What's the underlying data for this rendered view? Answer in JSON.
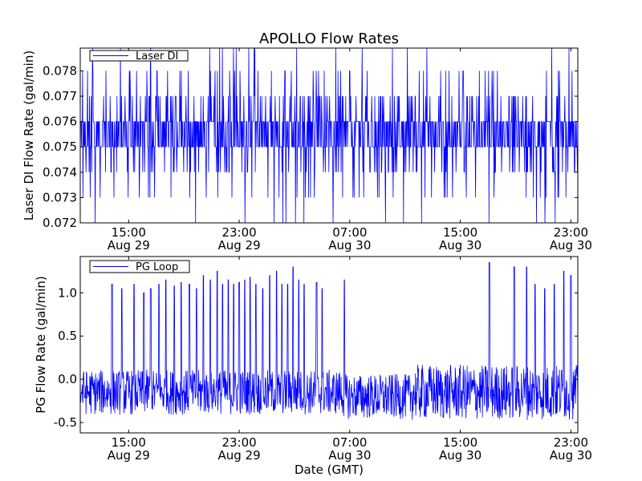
{
  "chart_data": [
    {
      "type": "line",
      "title": "APOLLO Flow Rates",
      "ylabel": "Laser DI Flow Rate (gal/min)",
      "xlabel": "",
      "ylim": [
        0.072,
        0.0789
      ],
      "yticks": [
        0.072,
        0.073,
        0.074,
        0.075,
        0.076,
        0.077,
        0.078
      ],
      "ytick_labels": [
        "0.072",
        "0.073",
        "0.074",
        "0.075",
        "0.076",
        "0.077",
        "0.078"
      ],
      "xlim_hours": [
        0,
        36
      ],
      "xticks_hours": [
        3.5,
        11.5,
        19.5,
        27.5,
        35.5
      ],
      "xtick_labels": [
        [
          "15:00",
          "Aug 29"
        ],
        [
          "23:00",
          "Aug 29"
        ],
        [
          "07:00",
          "Aug 30"
        ],
        [
          "15:00",
          "Aug 30"
        ],
        [
          "23:00",
          "Aug 30"
        ]
      ],
      "legend": {
        "label": "Laser DI",
        "loc": "upper-left"
      },
      "series": [
        {
          "name": "Laser DI",
          "color": "#0000ff",
          "description": "quantized flow readings alternating mostly between 0.075 and 0.076 gal/min with frequent excursions to 0.073-0.078 and rare spikes beyond",
          "typical_range": [
            0.075,
            0.076
          ],
          "excursion_range": [
            0.073,
            0.078
          ]
        }
      ]
    },
    {
      "type": "line",
      "title": "",
      "ylabel": "PG Flow Rate (gal/min)",
      "xlabel": "Date (GMT)",
      "ylim": [
        -0.62,
        1.42
      ],
      "yticks": [
        -0.5,
        0.0,
        0.5,
        1.0
      ],
      "ytick_labels": [
        "-0.5",
        "0.0",
        "0.5",
        "1.0"
      ],
      "xlim_hours": [
        0,
        36
      ],
      "xticks_hours": [
        3.5,
        11.5,
        19.5,
        27.5,
        35.5
      ],
      "xtick_labels": [
        [
          "15:00",
          "Aug 29"
        ],
        [
          "23:00",
          "Aug 29"
        ],
        [
          "07:00",
          "Aug 30"
        ],
        [
          "15:00",
          "Aug 30"
        ],
        [
          "23:00",
          "Aug 30"
        ]
      ],
      "legend": {
        "label": "PG Loop",
        "loc": "upper-left"
      },
      "series": [
        {
          "name": "PG Loop",
          "color": "#0000ff",
          "description": "noisy baseline oscillating between about -0.45 and 0.15 gal/min with periodic spikes reaching about 1.0-1.35 gal/min",
          "baseline_range": [
            -0.45,
            0.15
          ],
          "spikes": [
            {
              "t": 2.3,
              "peak": 1.1
            },
            {
              "t": 3.0,
              "peak": 1.05
            },
            {
              "t": 3.9,
              "peak": 1.1
            },
            {
              "t": 4.6,
              "peak": 1.0
            },
            {
              "t": 5.1,
              "peak": 1.05
            },
            {
              "t": 5.7,
              "peak": 1.1
            },
            {
              "t": 6.2,
              "peak": 1.15
            },
            {
              "t": 6.8,
              "peak": 1.08
            },
            {
              "t": 7.3,
              "peak": 1.12
            },
            {
              "t": 7.9,
              "peak": 1.1
            },
            {
              "t": 8.4,
              "peak": 1.05
            },
            {
              "t": 8.9,
              "peak": 1.2
            },
            {
              "t": 9.4,
              "peak": 1.15
            },
            {
              "t": 9.9,
              "peak": 1.25
            },
            {
              "t": 10.3,
              "peak": 1.1
            },
            {
              "t": 10.7,
              "peak": 1.15
            },
            {
              "t": 11.1,
              "peak": 1.1
            },
            {
              "t": 11.5,
              "peak": 1.12
            },
            {
              "t": 11.9,
              "peak": 1.15
            },
            {
              "t": 12.3,
              "peak": 1.18
            },
            {
              "t": 12.7,
              "peak": 1.1
            },
            {
              "t": 13.2,
              "peak": 1.05
            },
            {
              "t": 13.7,
              "peak": 1.2
            },
            {
              "t": 14.2,
              "peak": 1.25
            },
            {
              "t": 14.6,
              "peak": 1.1
            },
            {
              "t": 15.0,
              "peak": 1.1
            },
            {
              "t": 15.4,
              "peak": 1.3
            },
            {
              "t": 15.8,
              "peak": 1.15
            },
            {
              "t": 16.2,
              "peak": 1.1
            },
            {
              "t": 17.1,
              "peak": 1.12
            },
            {
              "t": 17.5,
              "peak": 1.05
            },
            {
              "t": 19.1,
              "peak": 1.15
            },
            {
              "t": 29.6,
              "peak": 1.35
            },
            {
              "t": 31.4,
              "peak": 1.3
            },
            {
              "t": 32.3,
              "peak": 1.3
            },
            {
              "t": 32.9,
              "peak": 1.1
            },
            {
              "t": 33.6,
              "peak": 1.05
            },
            {
              "t": 34.3,
              "peak": 1.1
            },
            {
              "t": 35.0,
              "peak": 1.25
            },
            {
              "t": 35.5,
              "peak": 1.2
            }
          ]
        }
      ]
    }
  ]
}
